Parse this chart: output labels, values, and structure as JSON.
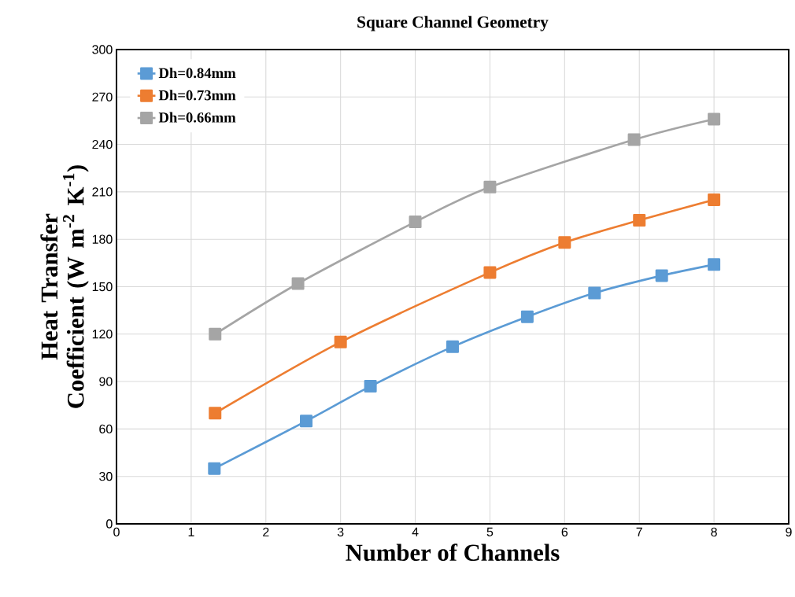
{
  "chart_data": {
    "type": "line",
    "title": "Square Channel Geometry",
    "xlabel": "Number of Channels",
    "ylabel": "Heat Transfer Coefficient (W m$^{-2}$ K$^{-1}$)",
    "xlim": [
      0,
      9
    ],
    "xticks": [
      0,
      1,
      2,
      3,
      4,
      5,
      6,
      7,
      8,
      9
    ],
    "ylim": [
      0,
      300
    ],
    "yticks": [
      0,
      30,
      60,
      90,
      120,
      150,
      180,
      210,
      240,
      270,
      300
    ],
    "grid": true,
    "legend": "top left",
    "marker": "square",
    "line_style": "solid",
    "series": [
      {
        "name": "Dh=0.84mm",
        "color": "#5b9bd5",
        "x": [
          1.31,
          2.54,
          3.4,
          4.5,
          5.5,
          6.4,
          7.3,
          8
        ],
        "values": [
          35,
          65,
          87,
          112,
          131,
          146,
          157,
          164
        ]
      },
      {
        "name": "Dh=0.73mm",
        "color": "#ed7d31",
        "x": [
          1.32,
          3,
          5,
          6,
          7,
          8
        ],
        "values": [
          70,
          115,
          159,
          178,
          192,
          205
        ]
      },
      {
        "name": "Dh=0.66mm",
        "color": "#a5a5a5",
        "x": [
          1.32,
          2.43,
          4,
          5,
          6.93,
          8
        ],
        "values": [
          120,
          152,
          191,
          213,
          243,
          256
        ]
      }
    ]
  }
}
